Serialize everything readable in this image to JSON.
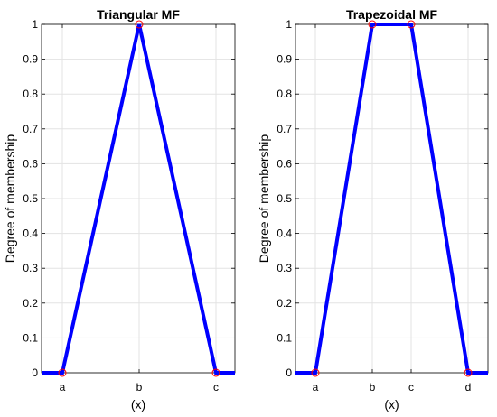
{
  "chart_data": [
    {
      "type": "line",
      "title": "Triangular MF",
      "xlabel": "(x)",
      "ylabel": "Degree of membership",
      "ylim": [
        0,
        1
      ],
      "yticks": [
        "0",
        "0.1",
        "0.2",
        "0.3",
        "0.4",
        "0.5",
        "0.6",
        "0.7",
        "0.8",
        "0.9",
        "1"
      ],
      "xtick_labels": [
        "a",
        "b",
        "c"
      ],
      "grid": true,
      "series_color": "#0000ff",
      "marker_color": "#ff0000",
      "series": [
        {
          "x": [
            "start",
            "a",
            "b",
            "c",
            "end"
          ],
          "values": [
            0,
            0,
            1,
            0,
            0
          ]
        }
      ],
      "markers": [
        {
          "x": "a",
          "y": 0
        },
        {
          "x": "b",
          "y": 1
        },
        {
          "x": "c",
          "y": 0
        }
      ]
    },
    {
      "type": "line",
      "title": "Trapezoidal MF",
      "xlabel": "(x)",
      "ylabel": "Degree of membership",
      "ylim": [
        0,
        1
      ],
      "yticks": [
        "0",
        "0.1",
        "0.2",
        "0.3",
        "0.4",
        "0.5",
        "0.6",
        "0.7",
        "0.8",
        "0.9",
        "1"
      ],
      "xtick_labels": [
        "a",
        "b",
        "c",
        "d"
      ],
      "grid": true,
      "series_color": "#0000ff",
      "marker_color": "#ff0000",
      "series": [
        {
          "x": [
            "start",
            "a",
            "b",
            "c",
            "d",
            "end"
          ],
          "values": [
            0,
            0,
            1,
            1,
            0,
            0
          ]
        }
      ],
      "markers": [
        {
          "x": "a",
          "y": 0
        },
        {
          "x": "b",
          "y": 1
        },
        {
          "x": "c",
          "y": 1
        },
        {
          "x": "d",
          "y": 0
        }
      ]
    }
  ]
}
